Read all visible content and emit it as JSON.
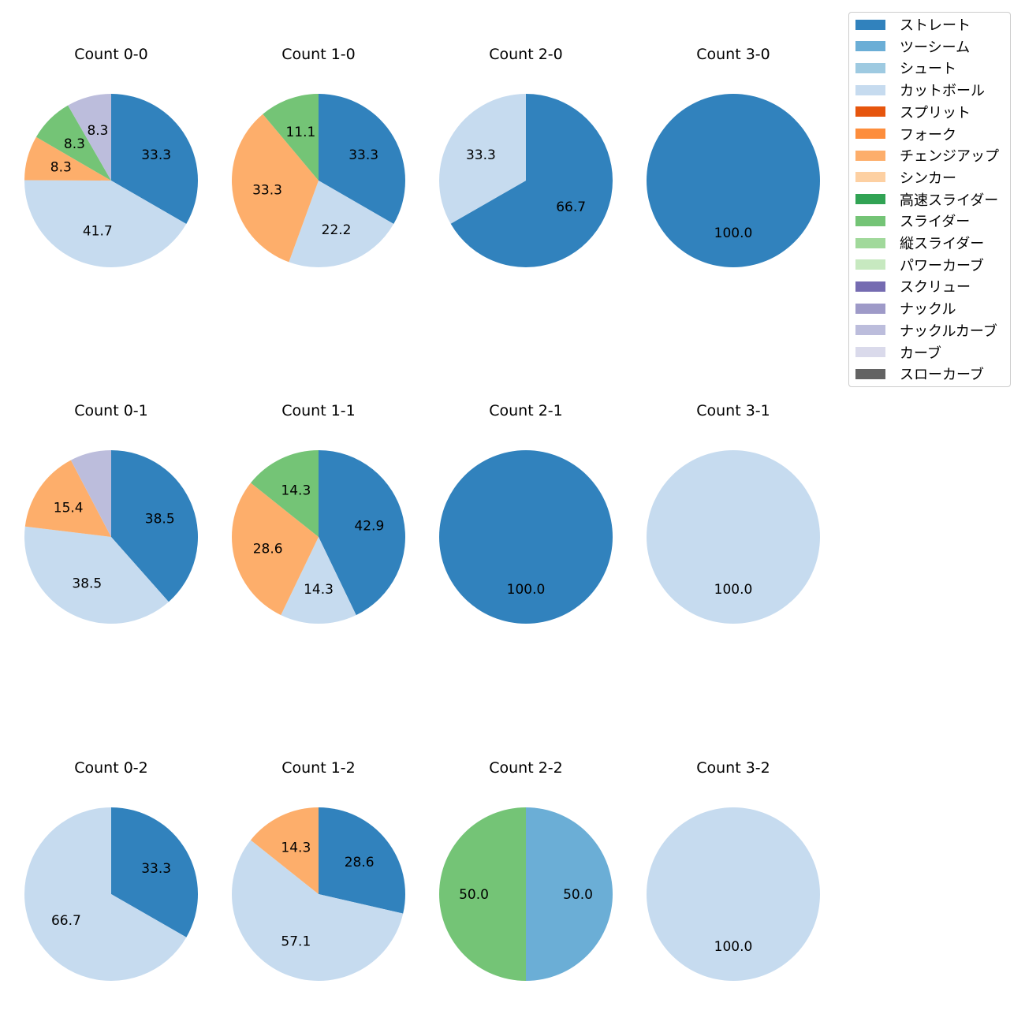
{
  "legend": {
    "placement": "top-right",
    "items": [
      {
        "label": "ストレート",
        "color": "#3182bd"
      },
      {
        "label": "ツーシーム",
        "color": "#6baed6"
      },
      {
        "label": "シュート",
        "color": "#9ecae1"
      },
      {
        "label": "カットボール",
        "color": "#c6dbef"
      },
      {
        "label": "スプリット",
        "color": "#e6550d"
      },
      {
        "label": "フォーク",
        "color": "#fd8d3c"
      },
      {
        "label": "チェンジアップ",
        "color": "#fdae6b"
      },
      {
        "label": "シンカー",
        "color": "#fdd0a2"
      },
      {
        "label": "高速スライダー",
        "color": "#31a354"
      },
      {
        "label": "スライダー",
        "color": "#74c476"
      },
      {
        "label": "縦スライダー",
        "color": "#a1d99b"
      },
      {
        "label": "パワーカーブ",
        "color": "#c7e9c0"
      },
      {
        "label": "スクリュー",
        "color": "#756bb1"
      },
      {
        "label": "ナックル",
        "color": "#9e9ac8"
      },
      {
        "label": "ナックルカーブ",
        "color": "#bcbddc"
      },
      {
        "label": "カーブ",
        "color": "#dadaeb"
      },
      {
        "label": "スローカーブ",
        "color": "#636363"
      }
    ]
  },
  "chart_data": [
    {
      "type": "pie",
      "title": "Count 0-0",
      "slices": [
        {
          "category": "ストレート",
          "value": 33.3
        },
        {
          "category": "カットボール",
          "value": 41.7
        },
        {
          "category": "チェンジアップ",
          "value": 8.3
        },
        {
          "category": "スライダー",
          "value": 8.3
        },
        {
          "category": "ナックルカーブ",
          "value": 8.3
        }
      ]
    },
    {
      "type": "pie",
      "title": "Count 1-0",
      "slices": [
        {
          "category": "ストレート",
          "value": 33.3
        },
        {
          "category": "カットボール",
          "value": 22.2
        },
        {
          "category": "チェンジアップ",
          "value": 33.3
        },
        {
          "category": "スライダー",
          "value": 11.1
        }
      ]
    },
    {
      "type": "pie",
      "title": "Count 2-0",
      "slices": [
        {
          "category": "ストレート",
          "value": 66.7
        },
        {
          "category": "カットボール",
          "value": 33.3
        }
      ]
    },
    {
      "type": "pie",
      "title": "Count 3-0",
      "slices": [
        {
          "category": "ストレート",
          "value": 100.0
        }
      ]
    },
    {
      "type": "pie",
      "title": "Count 0-1",
      "slices": [
        {
          "category": "ストレート",
          "value": 38.5
        },
        {
          "category": "カットボール",
          "value": 38.5
        },
        {
          "category": "チェンジアップ",
          "value": 15.4
        },
        {
          "category": "ナックルカーブ",
          "value": 7.7,
          "label": ""
        }
      ]
    },
    {
      "type": "pie",
      "title": "Count 1-1",
      "slices": [
        {
          "category": "ストレート",
          "value": 42.9
        },
        {
          "category": "カットボール",
          "value": 14.3
        },
        {
          "category": "チェンジアップ",
          "value": 28.6
        },
        {
          "category": "スライダー",
          "value": 14.3
        }
      ]
    },
    {
      "type": "pie",
      "title": "Count 2-1",
      "slices": [
        {
          "category": "ストレート",
          "value": 100.0
        }
      ]
    },
    {
      "type": "pie",
      "title": "Count 3-1",
      "slices": [
        {
          "category": "カットボール",
          "value": 100.0
        }
      ]
    },
    {
      "type": "pie",
      "title": "Count 0-2",
      "slices": [
        {
          "category": "ストレート",
          "value": 33.3
        },
        {
          "category": "カットボール",
          "value": 66.7
        }
      ]
    },
    {
      "type": "pie",
      "title": "Count 1-2",
      "slices": [
        {
          "category": "ストレート",
          "value": 28.6
        },
        {
          "category": "カットボール",
          "value": 57.1
        },
        {
          "category": "チェンジアップ",
          "value": 14.3
        }
      ]
    },
    {
      "type": "pie",
      "title": "Count 2-2",
      "slices": [
        {
          "category": "ツーシーム",
          "value": 50.0
        },
        {
          "category": "スライダー",
          "value": 50.0
        }
      ]
    },
    {
      "type": "pie",
      "title": "Count 3-2",
      "slices": [
        {
          "category": "カットボール",
          "value": 100.0
        }
      ]
    }
  ]
}
